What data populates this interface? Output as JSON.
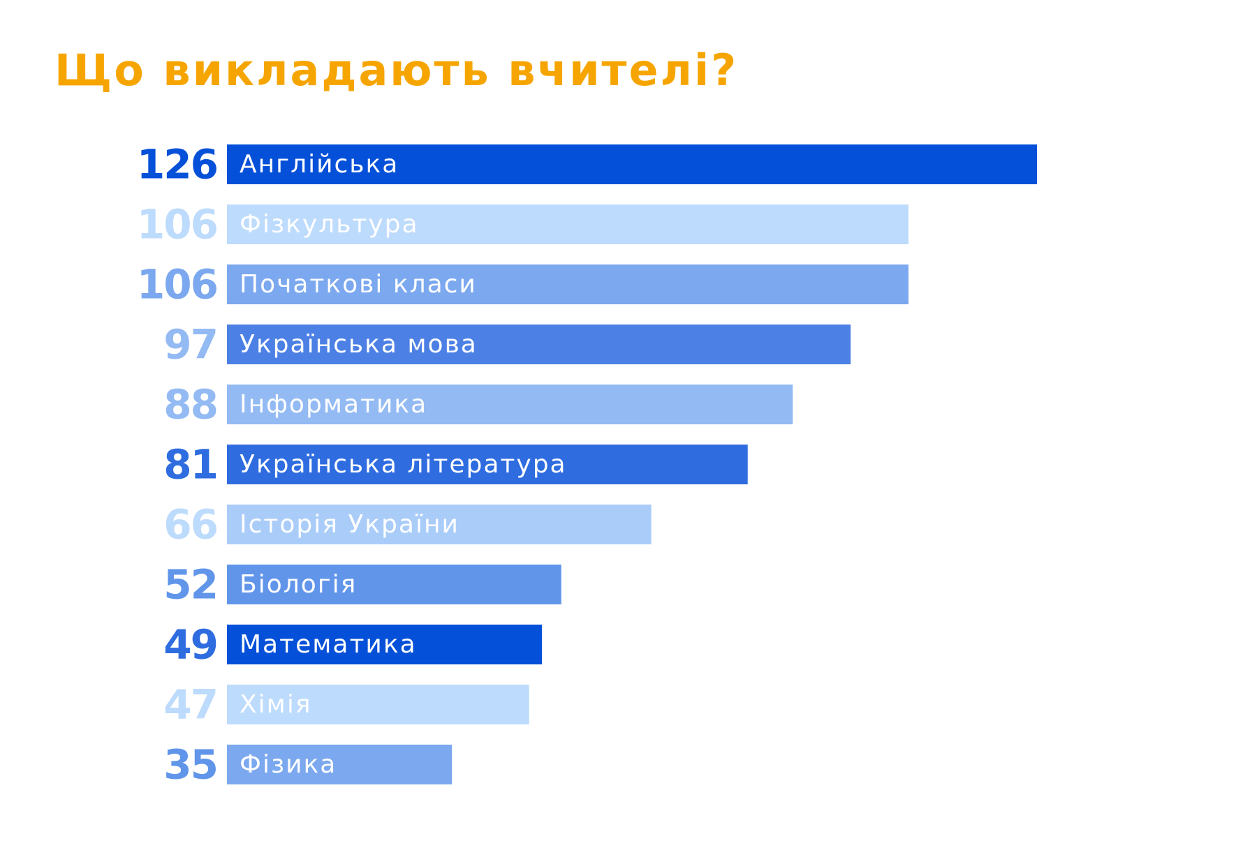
{
  "title": "Що викладають вчителі?",
  "colors": {
    "title": "#F6A500",
    "text_on_dark": "#FFFFFF",
    "text_on_light": "#FFFFFF"
  },
  "chart_data": {
    "type": "bar",
    "orientation": "horizontal",
    "title": "Що викладають вчителі?",
    "xlabel": "",
    "ylabel": "",
    "grid": false,
    "legend": "none",
    "xlim": [
      0,
      126
    ],
    "categories": [
      "Англійська",
      "Фізкультура",
      "Початкові класи",
      "Українська мова",
      "Інформатика",
      "Українська література",
      "Історія України",
      "Біологія",
      "Математика",
      "Хімія",
      "Фізика"
    ],
    "values": [
      126,
      106,
      106,
      97,
      88,
      81,
      66,
      52,
      49,
      47,
      35
    ],
    "bar_colors": [
      "#0550D8",
      "#BDDBFC",
      "#7BA8EE",
      "#4C80E5",
      "#93BAF3",
      "#2E6CE0",
      "#AACCF9",
      "#6195EA",
      "#0550D8",
      "#BDDBFC",
      "#7BA8EE"
    ],
    "value_label_colors": [
      "#0550D8",
      "#BDDBFC",
      "#7BA8EE",
      "#93BAF3",
      "#93BAF3",
      "#2E6CE0",
      "#BDDBFC",
      "#6195EA",
      "#2E6CE0",
      "#BDDBFC",
      "#6195EA"
    ]
  }
}
